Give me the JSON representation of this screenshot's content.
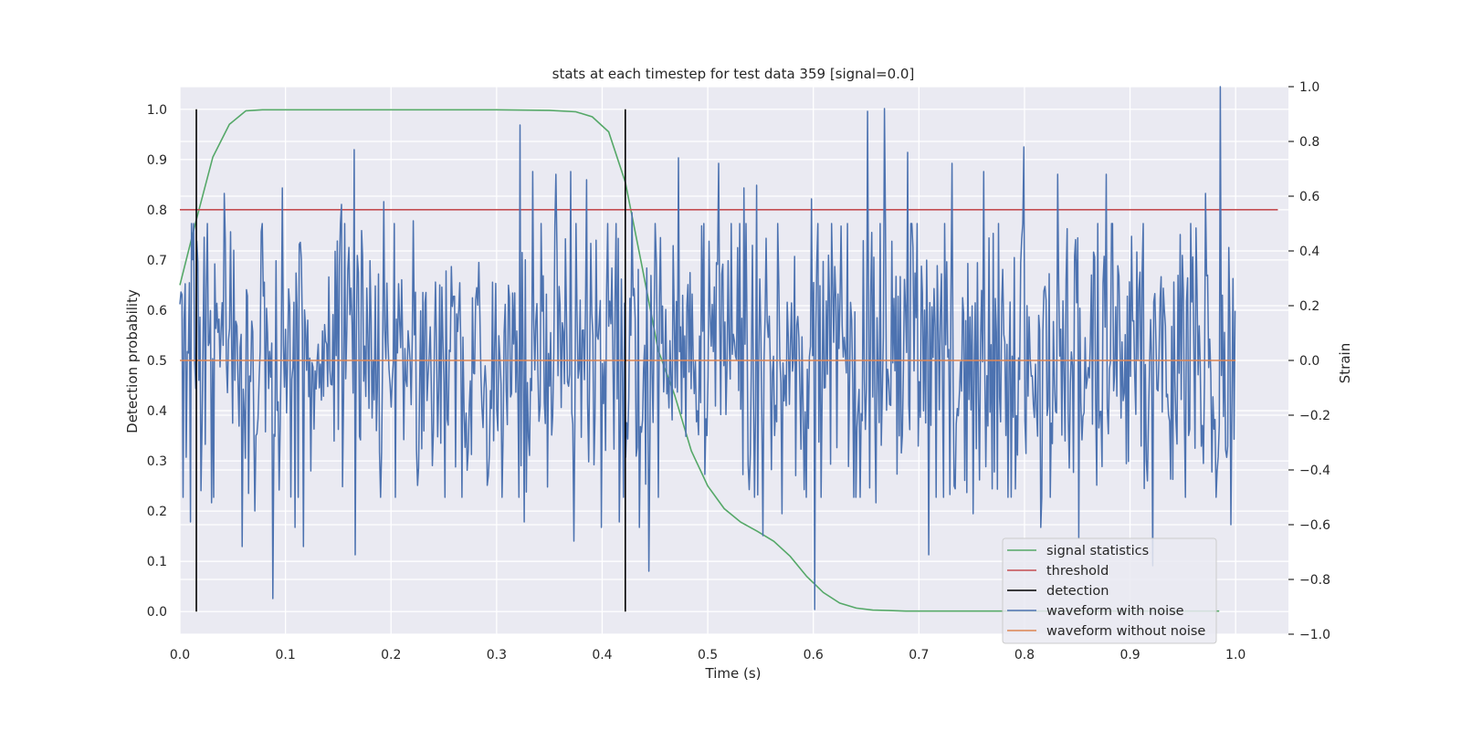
{
  "chart_data": {
    "type": "line",
    "title": "stats at each timestep for test data 359 [signal=0.0]",
    "xlabel": "Time (s)",
    "ylabel_left": "Detection probability",
    "ylabel_right": "Strain",
    "xlim": [
      0.0,
      1.05
    ],
    "ylim_left": [
      -0.045,
      1.045
    ],
    "ylim_right": [
      -1.0,
      1.0
    ],
    "x_ticks": [
      0.0,
      0.1,
      0.2,
      0.3,
      0.4,
      0.5,
      0.6,
      0.7,
      0.8,
      0.9,
      1.0
    ],
    "x_tick_labels": [
      "0.0",
      "0.1",
      "0.2",
      "0.3",
      "0.4",
      "0.5",
      "0.6",
      "0.7",
      "0.8",
      "0.9",
      "1.0"
    ],
    "y_left_ticks": [
      0.0,
      0.1,
      0.2,
      0.3,
      0.4,
      0.5,
      0.6,
      0.7,
      0.8,
      0.9,
      1.0
    ],
    "y_left_tick_labels": [
      "0.0",
      "0.1",
      "0.2",
      "0.3",
      "0.4",
      "0.5",
      "0.6",
      "0.7",
      "0.8",
      "0.9",
      "1.0"
    ],
    "y_right_ticks": [
      -1.0,
      -0.8,
      -0.6,
      -0.4,
      -0.2,
      0.0,
      0.2,
      0.4,
      0.6,
      0.8,
      1.0
    ],
    "y_right_tick_labels": [
      "−1.0",
      "−0.8",
      "−0.6",
      "−0.4",
      "−0.2",
      "0.0",
      "0.2",
      "0.4",
      "0.6",
      "0.8",
      "1.0"
    ],
    "grid": true,
    "legend_position": "lower-right",
    "series": [
      {
        "name": "signal statistics",
        "axis": "left",
        "color": "#55a868",
        "x": [
          0.0,
          0.0156,
          0.0312,
          0.0469,
          0.0625,
          0.0781,
          0.1,
          0.2,
          0.3,
          0.35,
          0.375,
          0.3906,
          0.4062,
          0.4219,
          0.4375,
          0.4531,
          0.4688,
          0.4844,
          0.5,
          0.5156,
          0.5312,
          0.5469,
          0.5625,
          0.5781,
          0.5938,
          0.6094,
          0.625,
          0.6406,
          0.6562,
          0.6719,
          0.6875,
          0.7,
          0.75,
          0.8,
          0.85,
          0.9,
          0.95,
          0.9844
        ],
        "y": [
          0.65,
          0.78,
          0.905,
          0.97,
          0.997,
          0.999,
          0.999,
          0.999,
          0.999,
          0.998,
          0.995,
          0.985,
          0.955,
          0.855,
          0.69,
          0.52,
          0.43,
          0.32,
          0.25,
          0.205,
          0.178,
          0.16,
          0.14,
          0.11,
          0.07,
          0.038,
          0.017,
          0.007,
          0.003,
          0.002,
          0.001,
          0.001,
          0.001,
          0.001,
          0.001,
          0.001,
          0.001,
          0.001
        ]
      },
      {
        "name": "threshold",
        "axis": "left",
        "color": "#c44e52",
        "x": [
          0.0,
          1.04
        ],
        "y": [
          0.8,
          0.8
        ]
      },
      {
        "name": "detection",
        "axis": "left",
        "color": "#000000",
        "lines": [
          {
            "x": 0.0156,
            "y_from": 0.0,
            "y_to": 1.0
          },
          {
            "x": 0.4219,
            "y_from": 0.0,
            "y_to": 1.0
          }
        ]
      },
      {
        "name": "waveform with noise",
        "axis": "right",
        "color": "#4c72b0",
        "x_range": [
          0.0,
          0.9995
        ],
        "n_points": 1000,
        "noise_std": 0.27,
        "peaks": [
          {
            "x": 0.0046,
            "y": 0.28
          },
          {
            "x": 0.0104,
            "y": -0.59
          },
          {
            "x": 0.0168,
            "y": 0.36
          },
          {
            "x": 0.0232,
            "y": 0.45
          },
          {
            "x": 0.0298,
            "y": -0.52
          },
          {
            "x": 0.0422,
            "y": 0.61
          },
          {
            "x": 0.0476,
            "y": 0.47
          },
          {
            "x": 0.0592,
            "y": -0.68
          },
          {
            "x": 0.0712,
            "y": -0.55
          },
          {
            "x": 0.0774,
            "y": 0.47
          },
          {
            "x": 0.0876,
            "y": -0.87
          },
          {
            "x": 0.0968,
            "y": 0.63
          },
          {
            "x": 0.1092,
            "y": -0.61
          },
          {
            "x": 0.1152,
            "y": 0.37
          },
          {
            "x": 0.1168,
            "y": -0.68
          },
          {
            "x": 0.1532,
            "y": 0.57
          },
          {
            "x": 0.1654,
            "y": 0.77
          },
          {
            "x": 0.1656,
            "y": -0.71
          },
          {
            "x": 0.1932,
            "y": 0.58
          },
          {
            "x": 0.2214,
            "y": 0.51
          },
          {
            "x": 0.3218,
            "y": 0.86
          },
          {
            "x": 0.3262,
            "y": -0.59
          },
          {
            "x": 0.3342,
            "y": 0.69
          },
          {
            "x": 0.3558,
            "y": 0.68
          },
          {
            "x": 0.3698,
            "y": 0.69
          },
          {
            "x": 0.3734,
            "y": -0.66
          },
          {
            "x": 0.3848,
            "y": 0.66
          },
          {
            "x": 0.3992,
            "y": -0.61
          },
          {
            "x": 0.4158,
            "y": -0.59
          },
          {
            "x": 0.4278,
            "y": 0.54
          },
          {
            "x": 0.4356,
            "y": -0.61
          },
          {
            "x": 0.4438,
            "y": -0.77
          },
          {
            "x": 0.4718,
            "y": 0.74
          },
          {
            "x": 0.5098,
            "y": 0.72
          },
          {
            "x": 0.5338,
            "y": 0.63
          },
          {
            "x": 0.5458,
            "y": 0.64
          },
          {
            "x": 0.5518,
            "y": -0.64
          },
          {
            "x": 0.5698,
            "y": -0.56
          },
          {
            "x": 0.5978,
            "y": 0.59
          },
          {
            "x": 0.6018,
            "y": -0.91
          },
          {
            "x": 0.6518,
            "y": 0.91
          },
          {
            "x": 0.6596,
            "y": -0.52
          },
          {
            "x": 0.6678,
            "y": 0.92
          },
          {
            "x": 0.6898,
            "y": 0.76
          },
          {
            "x": 0.7098,
            "y": -0.71
          },
          {
            "x": 0.7318,
            "y": 0.72
          },
          {
            "x": 0.7518,
            "y": -0.56
          },
          {
            "x": 0.7618,
            "y": 0.69
          },
          {
            "x": 0.7998,
            "y": 0.78
          },
          {
            "x": 0.8158,
            "y": -0.61
          },
          {
            "x": 0.8318,
            "y": 0.68
          },
          {
            "x": 0.8518,
            "y": -0.65
          },
          {
            "x": 0.8778,
            "y": 0.68
          },
          {
            "x": 0.9218,
            "y": -0.75
          },
          {
            "x": 0.9478,
            "y": 0.46
          },
          {
            "x": 0.9718,
            "y": 0.61
          },
          {
            "x": 0.9858,
            "y": 1.0
          },
          {
            "x": 0.9958,
            "y": -0.6
          }
        ]
      },
      {
        "name": "waveform without noise",
        "axis": "right",
        "color": "#dd8452",
        "x": [
          0.0,
          1.0
        ],
        "y": [
          0.0,
          0.0
        ]
      }
    ]
  }
}
